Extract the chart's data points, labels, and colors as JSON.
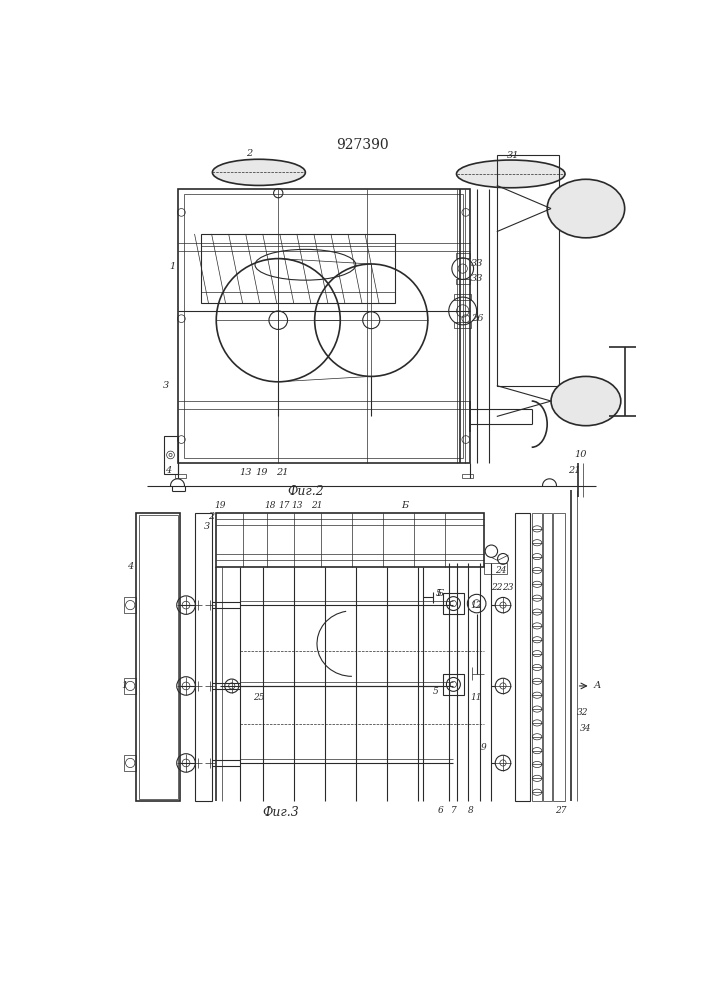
{
  "title": "927390",
  "bg_color": "#ffffff",
  "line_color": "#2a2a2a",
  "fig2_label": "Фиг.2",
  "fig3_label": "Фиг.3"
}
